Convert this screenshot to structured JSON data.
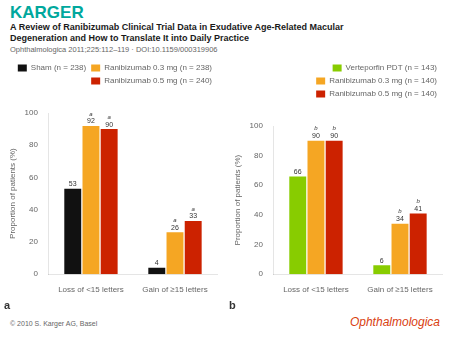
{
  "title": [
    "A Review of Ranibizumab Clinical Trial Data in Exudative Age-Related Macular",
    "Degeneration and How to Translate It into Daily Practice"
  ],
  "subtitle": "Ophthalmologica 2011;225:112–119 · DOI:10.1159/000319906",
  "annotations": [
    {
      "text": "KARGER",
      "color": "#00a89d"
    },
    {
      "text": "© 2010 S. Karger AG, Basel",
      "color": "#666666"
    },
    {
      "text": "Ophthalmologica",
      "color": "#d94010"
    }
  ],
  "chart_data": [
    {
      "type": "bar",
      "title": "a",
      "categories": [
        "Loss of <15 letters",
        "Gain of ≥15 letters"
      ],
      "series": [
        {
          "name": "Sham (n = 238)",
          "color": "#111111",
          "values": [
            53,
            4
          ]
        },
        {
          "name": "Ranibizumab 0.3 mg (n = 238)",
          "color": "#f5a623",
          "values": [
            92,
            26
          ]
        },
        {
          "name": "Ranibizumab 0.5 mg (n = 240)",
          "color": "#cc2200",
          "values": [
            90,
            33
          ]
        }
      ],
      "ylabel": "Proportion of patients (%)",
      "ylim": [
        0,
        100
      ],
      "yticks": [
        0,
        20,
        40,
        60,
        80,
        100
      ],
      "grid": false,
      "legend": "upper right",
      "data_labels": true,
      "annotations": [
        {
          "text": "a",
          "series": "Ranibizumab 0.3 mg (n = 238)",
          "category": "Loss of <15 letters"
        },
        {
          "text": "a",
          "series": "Ranibizumab 0.5 mg (n = 240)",
          "category": "Loss of <15 letters"
        },
        {
          "text": "a",
          "series": "Ranibizumab 0.3 mg (n = 238)",
          "category": "Gain of ≥15 letters"
        },
        {
          "text": "a",
          "series": "Ranibizumab 0.5 mg (n = 240)",
          "category": "Gain of ≥15 letters"
        }
      ]
    },
    {
      "type": "bar",
      "title": "b",
      "categories": [
        "Loss of <15 letters",
        "Gain of ≥15 letters"
      ],
      "series": [
        {
          "name": "Verteporfin PDT (n = 143)",
          "color": "#88cc00",
          "values": [
            66,
            6
          ]
        },
        {
          "name": "Ranibizumab 0.3 mg (n = 140)",
          "color": "#f5a623",
          "values": [
            90,
            34
          ]
        },
        {
          "name": "Ranibizumab 0.5 mg (n = 140)",
          "color": "#cc2200",
          "values": [
            90,
            41
          ]
        }
      ],
      "ylabel": "Proportion of patients (%)",
      "ylim": [
        0,
        100
      ],
      "yticks": [
        0,
        20,
        40,
        60,
        80,
        100
      ],
      "grid": false,
      "legend": "upper right",
      "data_labels": true,
      "annotations": [
        {
          "text": "b",
          "series": "Ranibizumab 0.3 mg (n = 140)",
          "category": "Loss of <15 letters"
        },
        {
          "text": "b",
          "series": "Ranibizumab 0.5 mg (n = 140)",
          "category": "Loss of <15 letters"
        },
        {
          "text": "b",
          "series": "Ranibizumab 0.3 mg (n = 140)",
          "category": "Gain of ≥15 letters"
        },
        {
          "text": "b",
          "series": "Ranibizumab 0.5 mg (n = 140)",
          "category": "Gain of ≥15 letters"
        }
      ]
    }
  ]
}
